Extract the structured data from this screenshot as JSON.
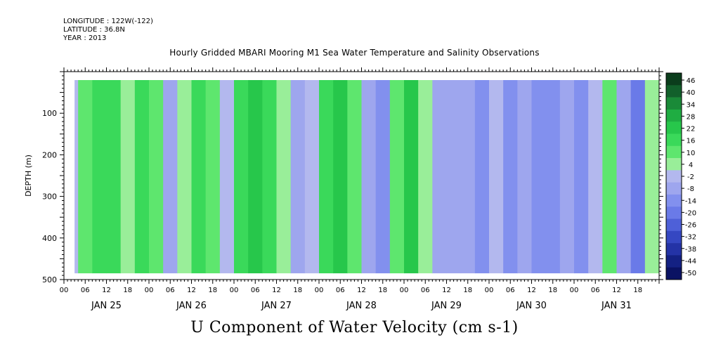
{
  "header": {
    "longitude": "LONGITUDE : 122W(-122)",
    "latitude": "LATITUDE : 36.8N",
    "year": "YEAR : 2013"
  },
  "chart_data": {
    "type": "heatmap",
    "title": "Hourly Gridded MBARI Mooring M1 Sea Water Temperature and Salinity Observations",
    "variable_title": "U Component of Water Velocity (cm s-1)",
    "ylabel": "DEPTH (m)",
    "ylim": [
      500,
      0
    ],
    "yticks": [
      100,
      200,
      300,
      400,
      500
    ],
    "xlim_hours": [
      0,
      168
    ],
    "data_start_hour": 3,
    "xtick_labels": [
      "00",
      "06",
      "12",
      "18",
      "00",
      "06",
      "12",
      "18",
      "00",
      "06",
      "12",
      "18",
      "00",
      "06",
      "12",
      "18",
      "00",
      "06",
      "12",
      "18",
      "00",
      "06",
      "12",
      "18",
      "00",
      "06",
      "12",
      "18"
    ],
    "day_labels": [
      "JAN 25",
      "JAN 26",
      "JAN 27",
      "JAN 28",
      "JAN 29",
      "JAN 30",
      "JAN 31"
    ],
    "colorbar_labels": [
      "46",
      "40",
      "34",
      "28",
      "22",
      "16",
      "10",
      "4",
      "-2",
      "-8",
      "-14",
      "-20",
      "-26",
      "-32",
      "-38",
      "-44",
      "-50"
    ],
    "colorbar_colors": [
      "#0b3d1c",
      "#12602b",
      "#1a8a38",
      "#1fad42",
      "#27c74b",
      "#3ad95a",
      "#5ee66e",
      "#99ee99",
      "#b3b8ee",
      "#9ea6ee",
      "#8290ee",
      "#6a7ae8",
      "#4e60d8",
      "#3547c2",
      "#2433a6",
      "#142183",
      "#0a1263"
    ],
    "depth_bottom_m": 485,
    "columns": [
      {
        "hour": 4,
        "u": -2
      },
      {
        "hour": 8,
        "u": 10
      },
      {
        "hour": 12,
        "u": 16
      },
      {
        "hour": 16,
        "u": 12
      },
      {
        "hour": 20,
        "u": 4
      },
      {
        "hour": 24,
        "u": 14
      },
      {
        "hour": 28,
        "u": 6
      },
      {
        "hour": 32,
        "u": -8
      },
      {
        "hour": 36,
        "u": 4
      },
      {
        "hour": 40,
        "u": 16
      },
      {
        "hour": 44,
        "u": 10
      },
      {
        "hour": 48,
        "u": -2
      },
      {
        "hour": 52,
        "u": 12
      },
      {
        "hour": 56,
        "u": 18
      },
      {
        "hour": 60,
        "u": 14
      },
      {
        "hour": 64,
        "u": 4
      },
      {
        "hour": 68,
        "u": -10
      },
      {
        "hour": 72,
        "u": -4
      },
      {
        "hour": 76,
        "u": 16
      },
      {
        "hour": 80,
        "u": 20
      },
      {
        "hour": 84,
        "u": 10
      },
      {
        "hour": 88,
        "u": -8
      },
      {
        "hour": 92,
        "u": -14
      },
      {
        "hour": 96,
        "u": 6
      },
      {
        "hour": 100,
        "u": 18
      },
      {
        "hour": 104,
        "u": 4
      },
      {
        "hour": 108,
        "u": -8
      },
      {
        "hour": 112,
        "u": -12
      },
      {
        "hour": 116,
        "u": -8
      },
      {
        "hour": 120,
        "u": -14
      },
      {
        "hour": 124,
        "u": -4
      },
      {
        "hour": 128,
        "u": -16
      },
      {
        "hour": 132,
        "u": -10
      },
      {
        "hour": 136,
        "u": -18
      },
      {
        "hour": 140,
        "u": -14
      },
      {
        "hour": 144,
        "u": -8
      },
      {
        "hour": 148,
        "u": -16
      },
      {
        "hour": 152,
        "u": -4
      },
      {
        "hour": 156,
        "u": 8
      },
      {
        "hour": 160,
        "u": -10
      },
      {
        "hour": 164,
        "u": -20
      },
      {
        "hour": 168,
        "u": 4
      }
    ]
  }
}
